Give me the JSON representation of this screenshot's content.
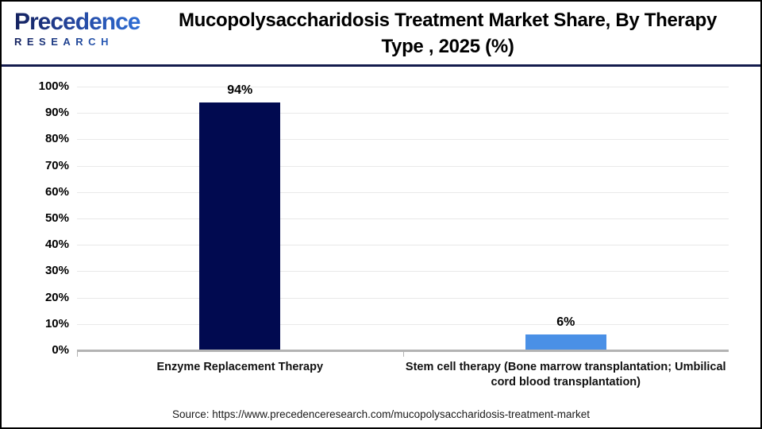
{
  "logo": {
    "name": "Precedence",
    "subname": "RESEARCH"
  },
  "header": {
    "title_line1": "Mucopolysaccharidosis Treatment Market  Share, By Therapy",
    "title_line2": "Type , 2025 (%)"
  },
  "chart_data": {
    "type": "bar",
    "title": "Mucopolysaccharidosis Treatment Market Share, By Therapy Type , 2025 (%)",
    "categories": [
      "Enzyme Replacement Therapy",
      "Stem cell therapy (Bone marrow transplantation; Umbilical cord blood transplantation)"
    ],
    "values": [
      94,
      6
    ],
    "value_labels": [
      "94%",
      "6%"
    ],
    "bar_colors": [
      "#010a50",
      "#4a90e6"
    ],
    "xlabel": "",
    "ylabel": "",
    "ylim": [
      0,
      100
    ],
    "ytick_step": 10,
    "ytick_suffix": "%",
    "grid": true,
    "legend_position": "none"
  },
  "colors": {
    "header_rule_navy": "#141b4d",
    "gridline": "#e9e9e9",
    "axis_line": "#b3b3b3",
    "text": "#000000"
  },
  "footer": {
    "source": "Source: https://www.precedenceresearch.com/mucopolysaccharidosis-treatment-market"
  }
}
